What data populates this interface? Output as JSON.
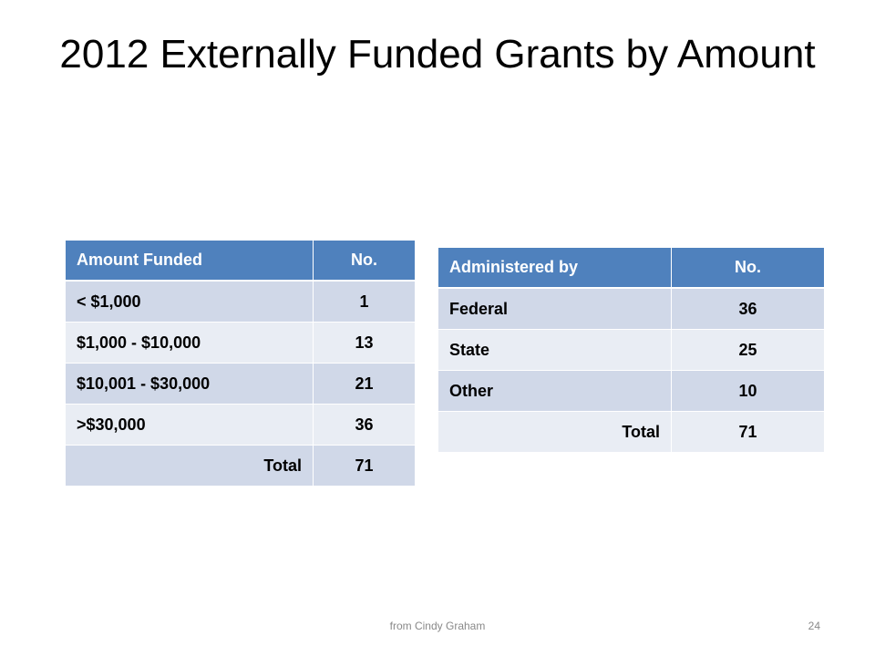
{
  "slide": {
    "title": "2012 Externally Funded Grants by Amount",
    "footer_source": "from Cindy Graham",
    "page_number": "24"
  },
  "colors": {
    "header": "#4f81bd",
    "row_odd": "#d0d8e8",
    "row_even": "#e9edf4"
  },
  "amount_table": {
    "headers": [
      "Amount Funded",
      "No."
    ],
    "rows": [
      [
        "< $1,000",
        "1"
      ],
      [
        "$1,000 - $10,000",
        "13"
      ],
      [
        "$10,001 - $30,000",
        "21"
      ],
      [
        ">$30,000",
        "36"
      ],
      [
        "Total",
        "71"
      ]
    ]
  },
  "admin_table": {
    "headers": [
      "Administered by",
      "No."
    ],
    "rows": [
      [
        "Federal",
        "36"
      ],
      [
        "State",
        "25"
      ],
      [
        "Other",
        "10"
      ],
      [
        "Total",
        "71"
      ]
    ]
  }
}
